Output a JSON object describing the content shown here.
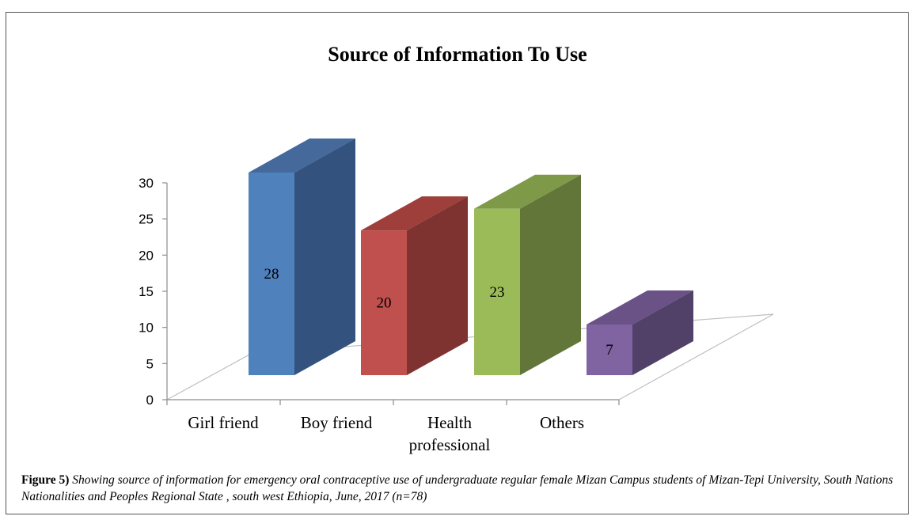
{
  "chart_data": {
    "type": "bar",
    "title": "Source of Information To Use",
    "categories": [
      "Girl friend",
      "Boy friend",
      "Health professional",
      "Others"
    ],
    "category_lines": [
      [
        "Girl friend"
      ],
      [
        "Boy friend"
      ],
      [
        "Health",
        "professional"
      ],
      [
        "Others"
      ]
    ],
    "values": [
      28,
      20,
      23,
      7
    ],
    "data_labels": [
      "28",
      "20",
      "23",
      "7"
    ],
    "ylim": [
      0,
      30
    ],
    "yticks": [
      0,
      5,
      10,
      15,
      20,
      25,
      30
    ],
    "ytick_labels": [
      "0",
      "5",
      "10",
      "15",
      "20",
      "25",
      "30"
    ],
    "xlabel": "",
    "ylabel": "",
    "style": "3d-column",
    "grid": false,
    "legend": "none",
    "colors": [
      {
        "front": "#4F81BD",
        "side": "#34527E",
        "top": "#44699A"
      },
      {
        "front": "#C0504D",
        "side": "#7E3331",
        "top": "#9E3F3C"
      },
      {
        "front": "#9BBB59",
        "side": "#63763A",
        "top": "#7E9A49"
      },
      {
        "front": "#8064A2",
        "side": "#514068",
        "top": "#6A5287"
      }
    ]
  },
  "caption": {
    "label": "Figure 5)",
    "text": "Showing source of information for emergency oral contraceptive use of undergraduate regular female Mizan Campus students of Mizan-Tepi University, South Nations Nationalities and Peoples Regional State , south west Ethiopia, June, 2017 (n=78)"
  }
}
